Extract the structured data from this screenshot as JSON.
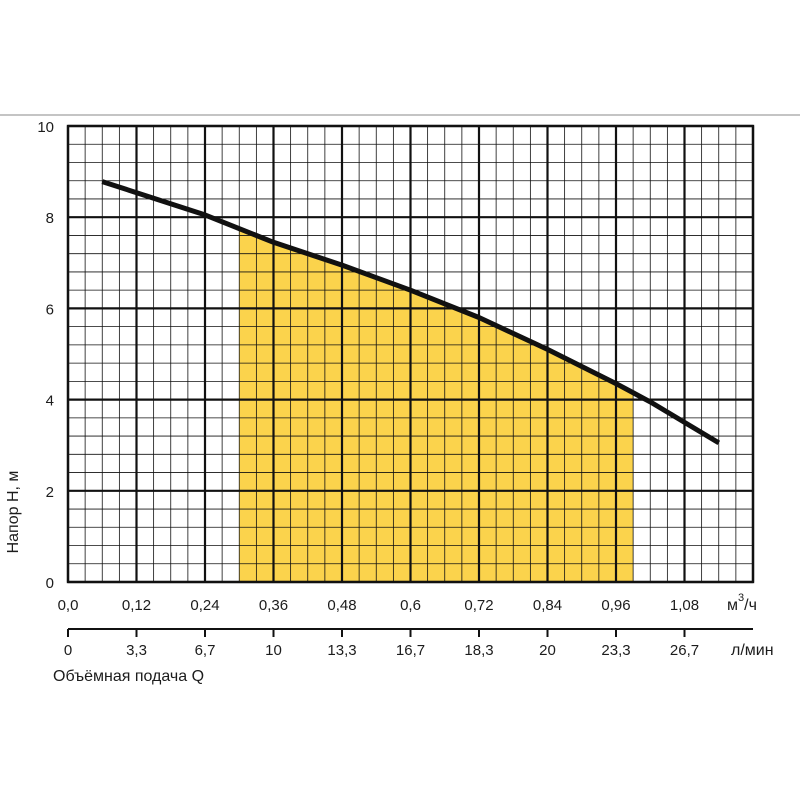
{
  "chart_data": {
    "type": "line",
    "ylabel": "Напор H, м",
    "xlabel": "Объёмная подача Q",
    "y_ticks": [
      "0",
      "2",
      "4",
      "6",
      "8",
      "10"
    ],
    "ylim": [
      0,
      10
    ],
    "x_axis_primary": {
      "unit_prefix": "м",
      "unit_sup": "3",
      "unit_suffix": "/ч",
      "ticks": [
        "0,0",
        "0,12",
        "0,24",
        "0,36",
        "0,48",
        "0,6",
        "0,72",
        "0,84",
        "0,96",
        "1,08"
      ],
      "xlim": [
        0,
        1.2
      ]
    },
    "x_axis_secondary": {
      "unit": "л/мин",
      "ticks": [
        "0",
        "3,3",
        "6,7",
        "10",
        "13,3",
        "16,7",
        "18,3",
        "20",
        "23,3",
        "26,7"
      ]
    },
    "grid": true,
    "series": [
      {
        "x": [
          0.06,
          0.24,
          0.36,
          0.48,
          0.6,
          0.72,
          0.84,
          0.96,
          1.02,
          1.14
        ],
        "y": [
          8.78,
          8.05,
          7.45,
          6.95,
          6.4,
          5.8,
          5.1,
          4.35,
          3.95,
          3.05
        ],
        "color": "#111111"
      }
    ],
    "recommended_range": {
      "x": [
        0.3,
        0.99
      ],
      "color": "#fbd34c"
    }
  }
}
